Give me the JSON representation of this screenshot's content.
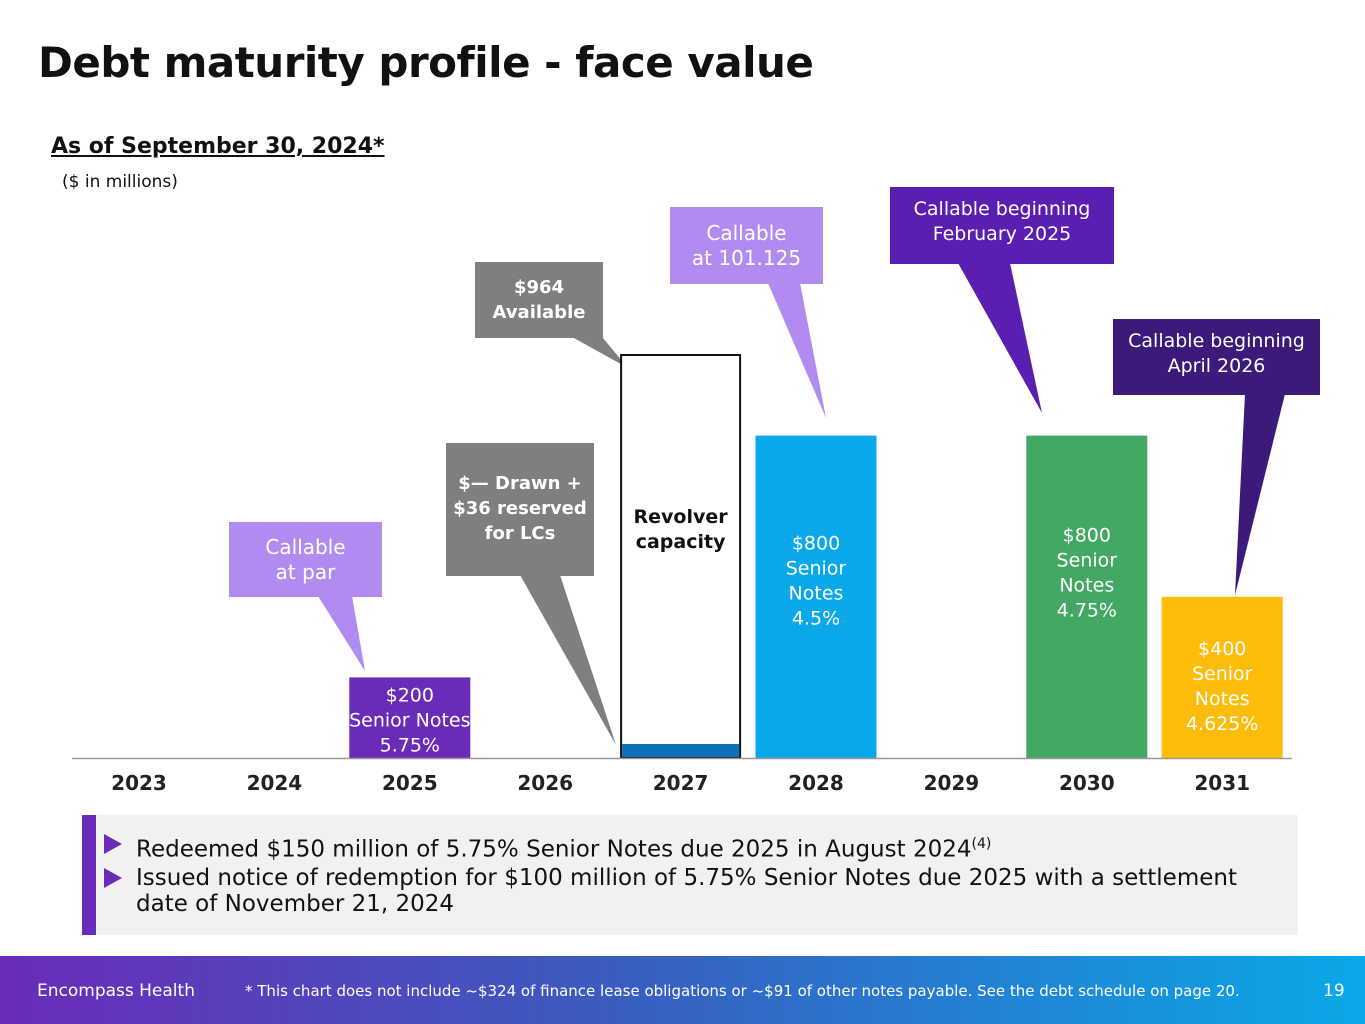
{
  "title": "Debt maturity profile - face value",
  "as_of": "As of September 30, 2024*",
  "units": "($ in millions)",
  "chart_data": {
    "type": "bar",
    "categories": [
      "2023",
      "2024",
      "2025",
      "2026",
      "2027",
      "2028",
      "2029",
      "2030",
      "2031"
    ],
    "series": [
      {
        "values": [
          0,
          0,
          200,
          0,
          0,
          800,
          0,
          800,
          400
        ]
      },
      {
        "values": [
          0,
          0,
          0,
          0,
          36,
          0,
          0,
          0,
          0
        ]
      },
      {
        "values": [
          0,
          0,
          0,
          0,
          964,
          0,
          0,
          0,
          0
        ]
      }
    ],
    "colors": [
      "#6a2cb8",
      "#0a72b8",
      "#ffffff",
      "#0aa8e8",
      "#ffffff",
      "#43a864",
      "#fdbb0a"
    ],
    "bar_labels": {
      "2025": "$200\nSenior Notes\n5.75%",
      "2027": "Revolver\ncapacity",
      "2028": "$800\nSenior\nNotes\n4.5%",
      "2030": "$800\nSenior\nNotes\n4.75%",
      "2031": "$400\nSenior\nNotes\n4.625%"
    },
    "ylim": [
      0,
      1000
    ],
    "grid": false
  },
  "callouts": {
    "c2025": "Callable\nat par",
    "drawn": "$— Drawn +\n$36 reserved\nfor LCs",
    "available": "$964\nAvailable",
    "c2028": "Callable\nat 101.125",
    "c2030": "Callable beginning\nFebruary 2025",
    "c2031": "Callable beginning\nApril 2026"
  },
  "bullets": [
    "Redeemed $150 million of 5.75% Senior Notes due 2025 in August 2024",
    "Issued notice of redemption for $100 million of 5.75% Senior Notes due 2025 with a settlement date of November 21, 2024"
  ],
  "bullet_footnote": "(4)",
  "footer": {
    "company": "Encompass Health",
    "note": "* This chart does not include ~$324 of finance lease obligations or ~$91 of other notes payable. See the debt schedule on page 20.",
    "page": "19"
  }
}
